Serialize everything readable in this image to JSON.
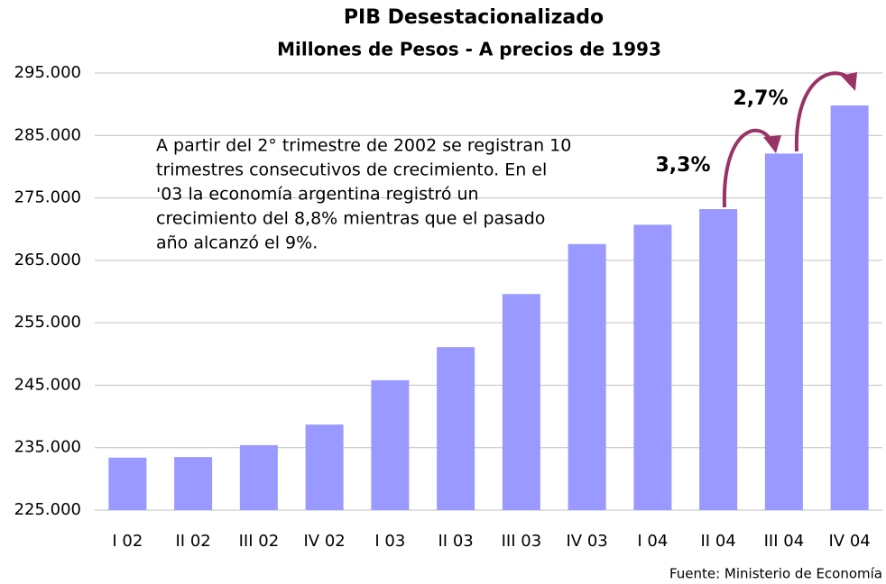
{
  "chart_data": {
    "type": "bar",
    "title": "PIB Desestacionalizado",
    "subtitle": "Millones de Pesos - A precios de 1993",
    "categories": [
      "I 02",
      "II 02",
      "III 02",
      "IV 02",
      "I 03",
      "II 03",
      "III 03",
      "IV 03",
      "I 04",
      "II 04",
      "III 04",
      "IV 04"
    ],
    "values": [
      233400,
      233500,
      235400,
      238700,
      245800,
      251100,
      259600,
      267600,
      270700,
      273200,
      282100,
      289800
    ],
    "color": "#9999ff",
    "ylim": [
      225000,
      295000
    ],
    "yticks": [
      {
        "value": 225000,
        "label": "225.000"
      },
      {
        "value": 235000,
        "label": "235.000"
      },
      {
        "value": 245000,
        "label": "245.000"
      },
      {
        "value": 255000,
        "label": "255.000"
      },
      {
        "value": 265000,
        "label": "265.000"
      },
      {
        "value": 275000,
        "label": "275.000"
      },
      {
        "value": 285000,
        "label": "285.000"
      },
      {
        "value": 295000,
        "label": "295.000"
      }
    ],
    "grid": true,
    "note": [
      "A partir del 2° trimestre de 2002 se registran 10",
      "trimestres consecutivos de crecimiento. En el",
      "'03 la economía argentina registró un",
      "crecimiento del 8,8% mientras que el pasado",
      "año alcanzó el 9%."
    ],
    "annotations": [
      "3,3%",
      "2,7%"
    ],
    "source": "Fuente: Ministerio de Economía"
  }
}
